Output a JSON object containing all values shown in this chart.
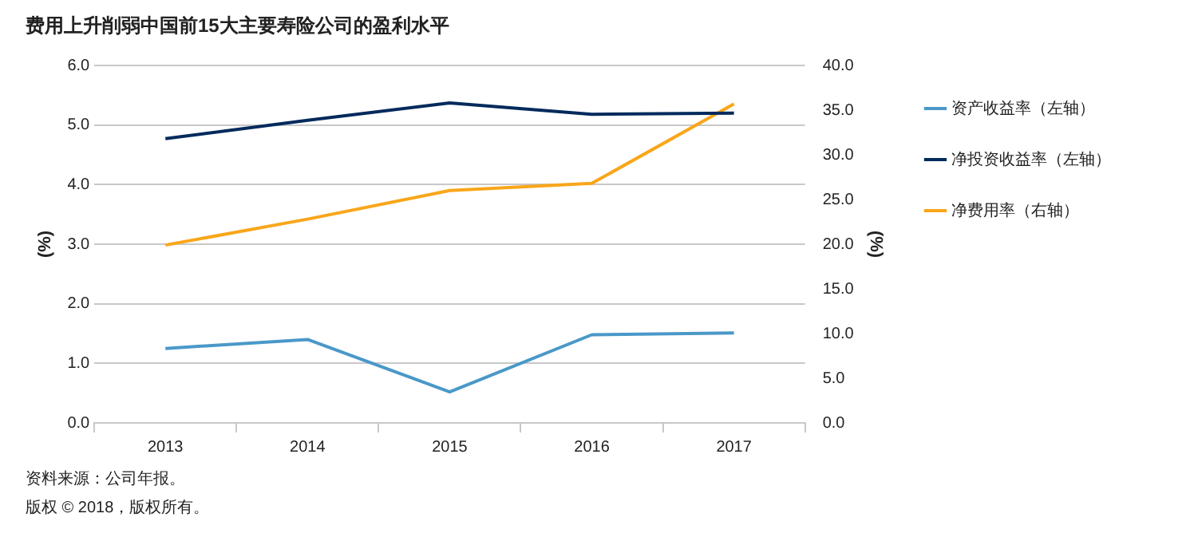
{
  "chart_data": {
    "type": "line",
    "title": "费用上升削弱中国前15大主要寿险公司的盈利水平",
    "categories": [
      "2013",
      "2014",
      "2015",
      "2016",
      "2017"
    ],
    "series": [
      {
        "name": "资产收益率（左轴）",
        "color": "#4a98c9",
        "values": [
          1.25,
          1.4,
          0.52,
          1.48,
          1.51
        ]
      },
      {
        "name": "净投资收益率（左轴）",
        "color": "#002a5c",
        "values": [
          4.77,
          5.08,
          5.37,
          5.18,
          5.2
        ]
      },
      {
        "name": "净费用率（右轴）",
        "color": "#f9a61a",
        "values": [
          19.9,
          22.8,
          26.0,
          26.8,
          35.7
        ],
        "axis": "y2"
      }
    ],
    "ylabel": "(%)",
    "y2label": "(%)",
    "ylim": [
      0,
      6
    ],
    "yticks": [
      {
        "value": 0,
        "label": "0.0"
      },
      {
        "value": 1,
        "label": "1.0"
      },
      {
        "value": 2,
        "label": "2.0"
      },
      {
        "value": 3,
        "label": "3.0"
      },
      {
        "value": 4,
        "label": "4.0"
      },
      {
        "value": 5,
        "label": "5.0"
      },
      {
        "value": 6,
        "label": "6.0"
      }
    ],
    "y2lim": [
      0,
      40
    ],
    "y2ticks": [
      {
        "value": 0,
        "label": "0.0"
      },
      {
        "value": 5,
        "label": "5.0"
      },
      {
        "value": 10,
        "label": "10.0"
      },
      {
        "value": 15,
        "label": "15.0"
      },
      {
        "value": 20,
        "label": "20.0"
      },
      {
        "value": 25,
        "label": "25.0"
      },
      {
        "value": 30,
        "label": "30.0"
      },
      {
        "value": 35,
        "label": "35.0"
      },
      {
        "value": 40,
        "label": "40.0"
      }
    ],
    "grid": "y",
    "legend": "right",
    "marker": "none",
    "line_style": "solid",
    "annotations": [
      "资料来源：公司年报。",
      "版权 © 2018，版权所有。"
    ]
  }
}
